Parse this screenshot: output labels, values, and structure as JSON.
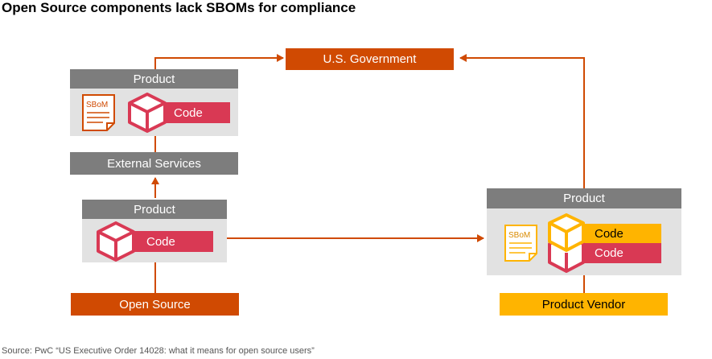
{
  "title": "Open Source components lack SBOMs for compliance",
  "source": "Source: PwC “US Executive Order 14028: what it means for open source users”",
  "nodes": {
    "us_government": "U.S. Government",
    "product_top_left": "Product",
    "external_services": "External Services",
    "product_mid_left": "Product",
    "open_source": "Open Source",
    "product_right": "Product",
    "product_vendor": "Product Vendor"
  },
  "labels": {
    "code_top_left": "Code",
    "code_mid_left": "Code",
    "code_right_yellow": "Code",
    "code_right_red": "Code",
    "sbom_left": "SBoM",
    "sbom_right": "SBoM"
  },
  "colors": {
    "arrow": "#d04a02",
    "header_gray": "#7d7d7d",
    "panel_gray": "#e2e2e2",
    "code_red": "#d93954",
    "code_yellow": "#ffb400",
    "sbom_orange": "#d04a02",
    "sbom_yellow": "#ffb400"
  },
  "icons": {
    "sbom": "document-icon",
    "code": "cube-icon"
  }
}
